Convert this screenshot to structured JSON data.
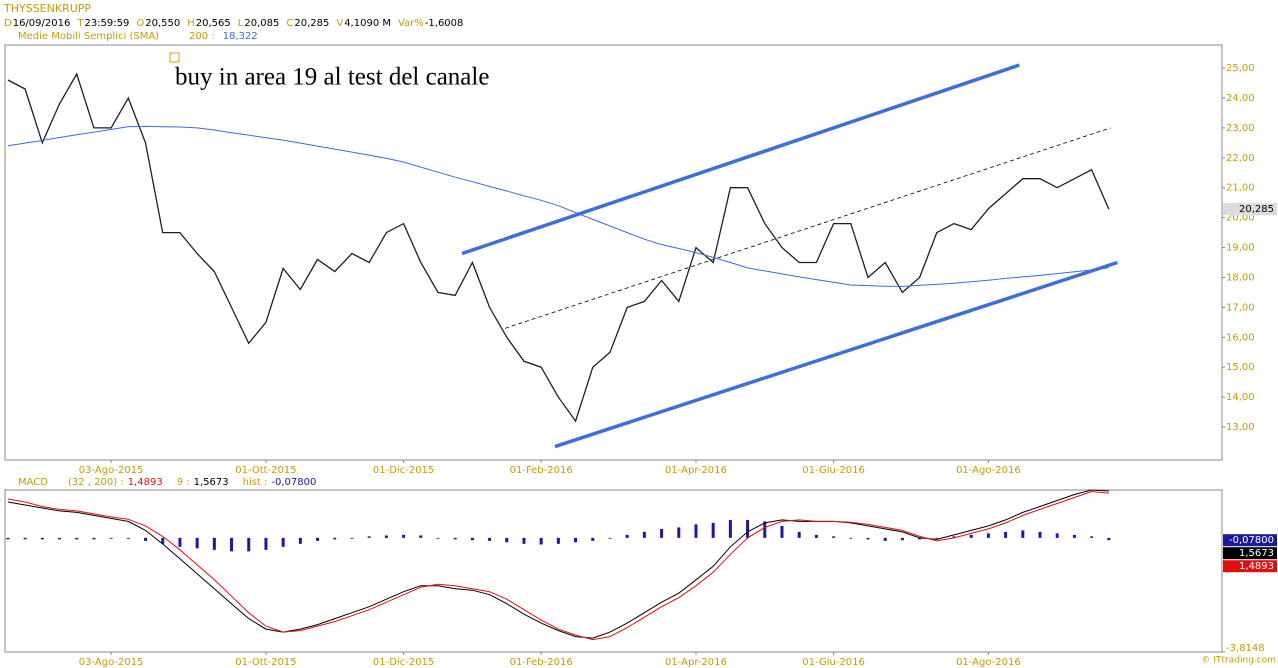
{
  "header": {
    "title": "THYSSENKRUPP",
    "fields": [
      {
        "key": "D",
        "value": "16/09/2016"
      },
      {
        "key": "T",
        "value": "23:59:59"
      },
      {
        "key": "O",
        "value": "20,550"
      },
      {
        "key": "H",
        "value": "20,565"
      },
      {
        "key": "L",
        "value": "20,085"
      },
      {
        "key": "C",
        "value": "20,285"
      },
      {
        "key": "V",
        "value": "4,1090 M"
      },
      {
        "key": "Var%",
        "value": "-1,6008"
      }
    ],
    "indicator": {
      "name": "Medie Mobili Semplici (SMA)",
      "param": "200 :",
      "value": "18,322"
    }
  },
  "macd_header": {
    "name": "MACD",
    "fields": [
      {
        "key": "(32 , 200) :",
        "value": "1,4893"
      },
      {
        "key": "9 :",
        "value": "1,5673"
      },
      {
        "key": "hist :",
        "value": "-0,07800"
      }
    ]
  },
  "footer": {
    "credit": "© ITtrading.com"
  },
  "chart_data": [
    {
      "type": "line",
      "annotation": "buy in area 19 al test del canale",
      "categories": [
        null,
        null,
        null,
        null,
        null,
        null,
        "03-Ago-2015",
        null,
        null,
        null,
        null,
        null,
        null,
        null,
        null,
        "01-Ott-2015",
        null,
        null,
        null,
        null,
        null,
        null,
        null,
        "01-Dic-2015",
        null,
        null,
        null,
        null,
        null,
        null,
        null,
        "01-Feb-2016",
        null,
        null,
        null,
        null,
        null,
        null,
        null,
        null,
        "01-Apr-2016",
        null,
        null,
        null,
        null,
        null,
        null,
        null,
        "01-Giu-2016",
        null,
        null,
        null,
        null,
        null,
        null,
        null,
        null,
        "01-Ago-2016",
        null,
        null,
        null,
        null,
        null,
        null,
        null
      ],
      "xlim": [
        -0.17,
        70.58
      ],
      "ylim": [
        11.9,
        25.77
      ],
      "yticks": [
        {
          "value": 13,
          "label": "13,00"
        },
        {
          "value": 14,
          "label": "14,00"
        },
        {
          "value": 15,
          "label": "15,00"
        },
        {
          "value": 16,
          "label": "16,00"
        },
        {
          "value": 17,
          "label": "17,00"
        },
        {
          "value": 18,
          "label": "18,00"
        },
        {
          "value": 19,
          "label": "19,00"
        },
        {
          "value": 20,
          "label": "20,00"
        },
        {
          "value": 21,
          "label": "21,00"
        },
        {
          "value": 22,
          "label": "22,00"
        },
        {
          "value": 23,
          "label": "23,00"
        },
        {
          "value": 24,
          "label": "24,00"
        },
        {
          "value": 25,
          "label": "25,00"
        }
      ],
      "grid": false,
      "series": [
        {
          "type": "line",
          "color": "#1f1f1f",
          "width": 1.3,
          "last_label": "20,285",
          "label_box": "#dcdcdc",
          "values": [
            24.6,
            24.3,
            22.5,
            23.8,
            24.8,
            23.0,
            23.0,
            24.0,
            22.5,
            19.5,
            19.5,
            18.8,
            18.2,
            17.0,
            15.8,
            16.5,
            18.3,
            17.6,
            18.6,
            18.2,
            18.8,
            18.5,
            19.5,
            19.8,
            18.5,
            17.5,
            17.4,
            18.5,
            17.0,
            16.0,
            15.2,
            15.0,
            14.0,
            13.2,
            15.0,
            15.5,
            17.0,
            17.2,
            17.9,
            17.2,
            19.0,
            18.5,
            21.0,
            21.0,
            19.8,
            19.0,
            18.5,
            18.5,
            19.8,
            19.8,
            18.0,
            18.5,
            17.5,
            18.0,
            19.5,
            19.8,
            19.6,
            20.3,
            20.8,
            21.3,
            21.3,
            21.0,
            21.3,
            21.6,
            20.285
          ]
        },
        {
          "type": "line",
          "color": "#3b6fd4",
          "width": 1,
          "values": [
            22.4,
            22.49,
            22.58,
            22.68,
            22.77,
            22.86,
            22.95,
            23.04,
            23.05,
            23.04,
            23.03,
            23.0,
            22.93,
            22.84,
            22.76,
            22.67,
            22.59,
            22.49,
            22.39,
            22.29,
            22.19,
            22.09,
            21.98,
            21.86,
            21.69,
            21.52,
            21.35,
            21.2,
            21.04,
            20.89,
            20.73,
            20.58,
            20.4,
            20.17,
            19.94,
            19.72,
            19.5,
            19.28,
            19.1,
            18.97,
            18.83,
            18.67,
            18.5,
            18.32,
            18.22,
            18.12,
            18.02,
            17.93,
            17.84,
            17.75,
            17.73,
            17.71,
            17.7,
            17.74,
            17.77,
            17.81,
            17.86,
            17.91,
            17.97,
            18.02,
            18.07,
            18.13,
            18.19,
            18.25,
            18.322
          ]
        }
      ],
      "trendlines": [
        {
          "x": [
            26.4,
            58.8
          ],
          "y": [
            18.8,
            25.1
          ],
          "color": "#3a6fdc",
          "width": 3.5,
          "dashed": false
        },
        {
          "x": [
            31.8,
            64.5
          ],
          "y": [
            12.35,
            18.5
          ],
          "color": "#3a6fdc",
          "width": 3.5,
          "dashed": false
        },
        {
          "x": [
            28.9,
            64.1
          ],
          "y": [
            16.3,
            23.0
          ],
          "color": "#000000",
          "width": 0.8,
          "dashed": true
        }
      ]
    },
    {
      "type": "line",
      "categories": [
        null,
        null,
        null,
        null,
        null,
        null,
        "03-Ago-2015",
        null,
        null,
        null,
        null,
        null,
        null,
        null,
        null,
        "01-Ott-2015",
        null,
        null,
        null,
        null,
        null,
        null,
        null,
        "01-Dic-2015",
        null,
        null,
        null,
        null,
        null,
        null,
        null,
        "01-Feb-2016",
        null,
        null,
        null,
        null,
        null,
        null,
        null,
        null,
        "01-Apr-2016",
        null,
        null,
        null,
        null,
        null,
        null,
        null,
        "01-Giu-2016",
        null,
        null,
        null,
        null,
        null,
        null,
        null,
        null,
        "01-Ago-2016",
        null,
        null,
        null,
        null,
        null,
        null,
        null
      ],
      "xlim": [
        -0.17,
        70.58
      ],
      "ylim": [
        -3.8148,
        1.6
      ],
      "yticks": [
        {
          "value": -3.8148,
          "label": "-3,8148"
        }
      ],
      "grid": false,
      "series": [
        {
          "type": "bar",
          "color": "#1a1a9c",
          "last_label": "-0,07800",
          "values": [
            -0.05,
            -0.05,
            -0.05,
            -0.05,
            -0.05,
            -0.05,
            -0.03,
            -0.03,
            -0.1,
            -0.2,
            -0.3,
            -0.35,
            -0.4,
            -0.45,
            -0.45,
            -0.4,
            -0.3,
            -0.2,
            -0.1,
            -0.05,
            0.0,
            0.05,
            0.08,
            0.1,
            0.08,
            0.0,
            -0.05,
            -0.08,
            -0.1,
            -0.15,
            -0.2,
            -0.22,
            -0.2,
            -0.15,
            -0.1,
            0.0,
            0.1,
            0.2,
            0.3,
            0.35,
            0.45,
            0.5,
            0.6,
            0.6,
            0.55,
            0.4,
            0.2,
            0.1,
            0.05,
            0.0,
            -0.05,
            -0.1,
            -0.08,
            -0.05,
            0.0,
            0.05,
            0.1,
            0.15,
            0.2,
            0.25,
            0.2,
            0.15,
            0.1,
            0.05,
            -0.078
          ]
        },
        {
          "type": "line",
          "color": "#000000",
          "width": 1,
          "last_label": "1,5673",
          "values": [
            1.2,
            1.1,
            1.0,
            0.9,
            0.85,
            0.75,
            0.65,
            0.55,
            0.25,
            -0.2,
            -0.7,
            -1.2,
            -1.7,
            -2.2,
            -2.7,
            -3.05,
            -3.15,
            -3.05,
            -2.9,
            -2.7,
            -2.5,
            -2.3,
            -2.05,
            -1.8,
            -1.6,
            -1.6,
            -1.7,
            -1.75,
            -1.9,
            -2.2,
            -2.55,
            -2.85,
            -3.1,
            -3.3,
            -3.35,
            -3.15,
            -2.85,
            -2.5,
            -2.15,
            -1.85,
            -1.4,
            -0.95,
            -0.3,
            0.2,
            0.5,
            0.6,
            0.55,
            0.55,
            0.55,
            0.5,
            0.4,
            0.3,
            0.2,
            0.0,
            -0.05,
            0.1,
            0.25,
            0.4,
            0.6,
            0.85,
            1.05,
            1.25,
            1.45,
            1.6,
            1.5673
          ]
        },
        {
          "type": "line",
          "color": "#e01010",
          "width": 1,
          "last_label": "1,4893",
          "values": [
            1.3,
            1.2,
            1.05,
            0.95,
            0.9,
            0.8,
            0.7,
            0.62,
            0.4,
            0.05,
            -0.4,
            -0.9,
            -1.4,
            -1.95,
            -2.5,
            -2.95,
            -3.15,
            -3.1,
            -2.95,
            -2.8,
            -2.6,
            -2.4,
            -2.15,
            -1.9,
            -1.65,
            -1.55,
            -1.6,
            -1.7,
            -1.8,
            -2.05,
            -2.4,
            -2.75,
            -3.05,
            -3.25,
            -3.4,
            -3.3,
            -3.0,
            -2.65,
            -2.3,
            -2.0,
            -1.6,
            -1.15,
            -0.55,
            0.0,
            0.35,
            0.55,
            0.6,
            0.55,
            0.55,
            0.52,
            0.45,
            0.35,
            0.25,
            0.05,
            -0.1,
            0.0,
            0.15,
            0.3,
            0.5,
            0.75,
            0.95,
            1.15,
            1.35,
            1.55,
            1.4893
          ]
        }
      ]
    }
  ]
}
